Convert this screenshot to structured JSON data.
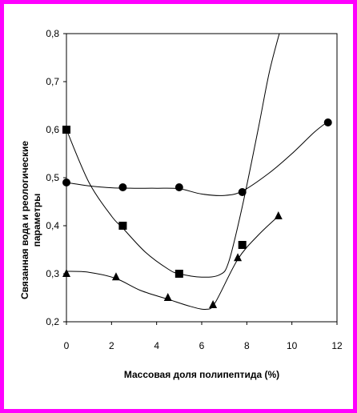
{
  "chart_data": {
    "type": "line",
    "title": "",
    "xlabel": "Массовая доля полипептида (%)",
    "ylabel_lines": [
      "Связанная вода и реологические",
      "параметры"
    ],
    "xlim": [
      0,
      12
    ],
    "ylim": [
      0.2,
      0.8
    ],
    "x_ticks": [
      "0",
      "2",
      "4",
      "6",
      "8",
      "10",
      "12"
    ],
    "y_ticks": [
      "0,2",
      "0,3",
      "0,4",
      "0,5",
      "0,6",
      "0,7",
      "0,8"
    ],
    "grid": false,
    "legend": "none",
    "frame_color": "#ff00ff",
    "series": [
      {
        "marker": "circle",
        "x": [
          0,
          2.5,
          5,
          7.8,
          11.6
        ],
        "y": [
          0.49,
          0.48,
          0.48,
          0.47,
          0.615
        ],
        "curve_x": [
          0,
          1,
          2,
          3,
          4,
          5,
          6,
          7,
          7.8,
          9,
          10,
          11,
          11.6
        ],
        "curve_y": [
          0.49,
          0.483,
          0.479,
          0.478,
          0.478,
          0.477,
          0.466,
          0.463,
          0.472,
          0.51,
          0.55,
          0.595,
          0.617
        ]
      },
      {
        "marker": "square",
        "x": [
          0,
          2.5,
          5,
          7.8
        ],
        "y": [
          0.6,
          0.4,
          0.3,
          0.36
        ],
        "curve_x": [
          0,
          1,
          2,
          2.5,
          3.5,
          4.5,
          5,
          6,
          6.8,
          7.2,
          7.8,
          8.5,
          9,
          9.5
        ],
        "curve_y": [
          0.6,
          0.49,
          0.42,
          0.395,
          0.345,
          0.31,
          0.3,
          0.293,
          0.298,
          0.325,
          0.44,
          0.6,
          0.72,
          0.81
        ]
      },
      {
        "marker": "triangle",
        "x": [
          0,
          2.2,
          4.5,
          6.5,
          7.6,
          9.4
        ],
        "y": [
          0.3,
          0.293,
          0.25,
          0.235,
          0.333,
          0.42
        ],
        "curve_x": [
          0,
          1,
          2.2,
          3.3,
          4.5,
          5.5,
          6.2,
          6.6,
          7.6,
          8.5,
          9.4
        ],
        "curve_y": [
          0.305,
          0.303,
          0.29,
          0.265,
          0.247,
          0.232,
          0.226,
          0.24,
          0.33,
          0.38,
          0.42
        ]
      }
    ]
  }
}
